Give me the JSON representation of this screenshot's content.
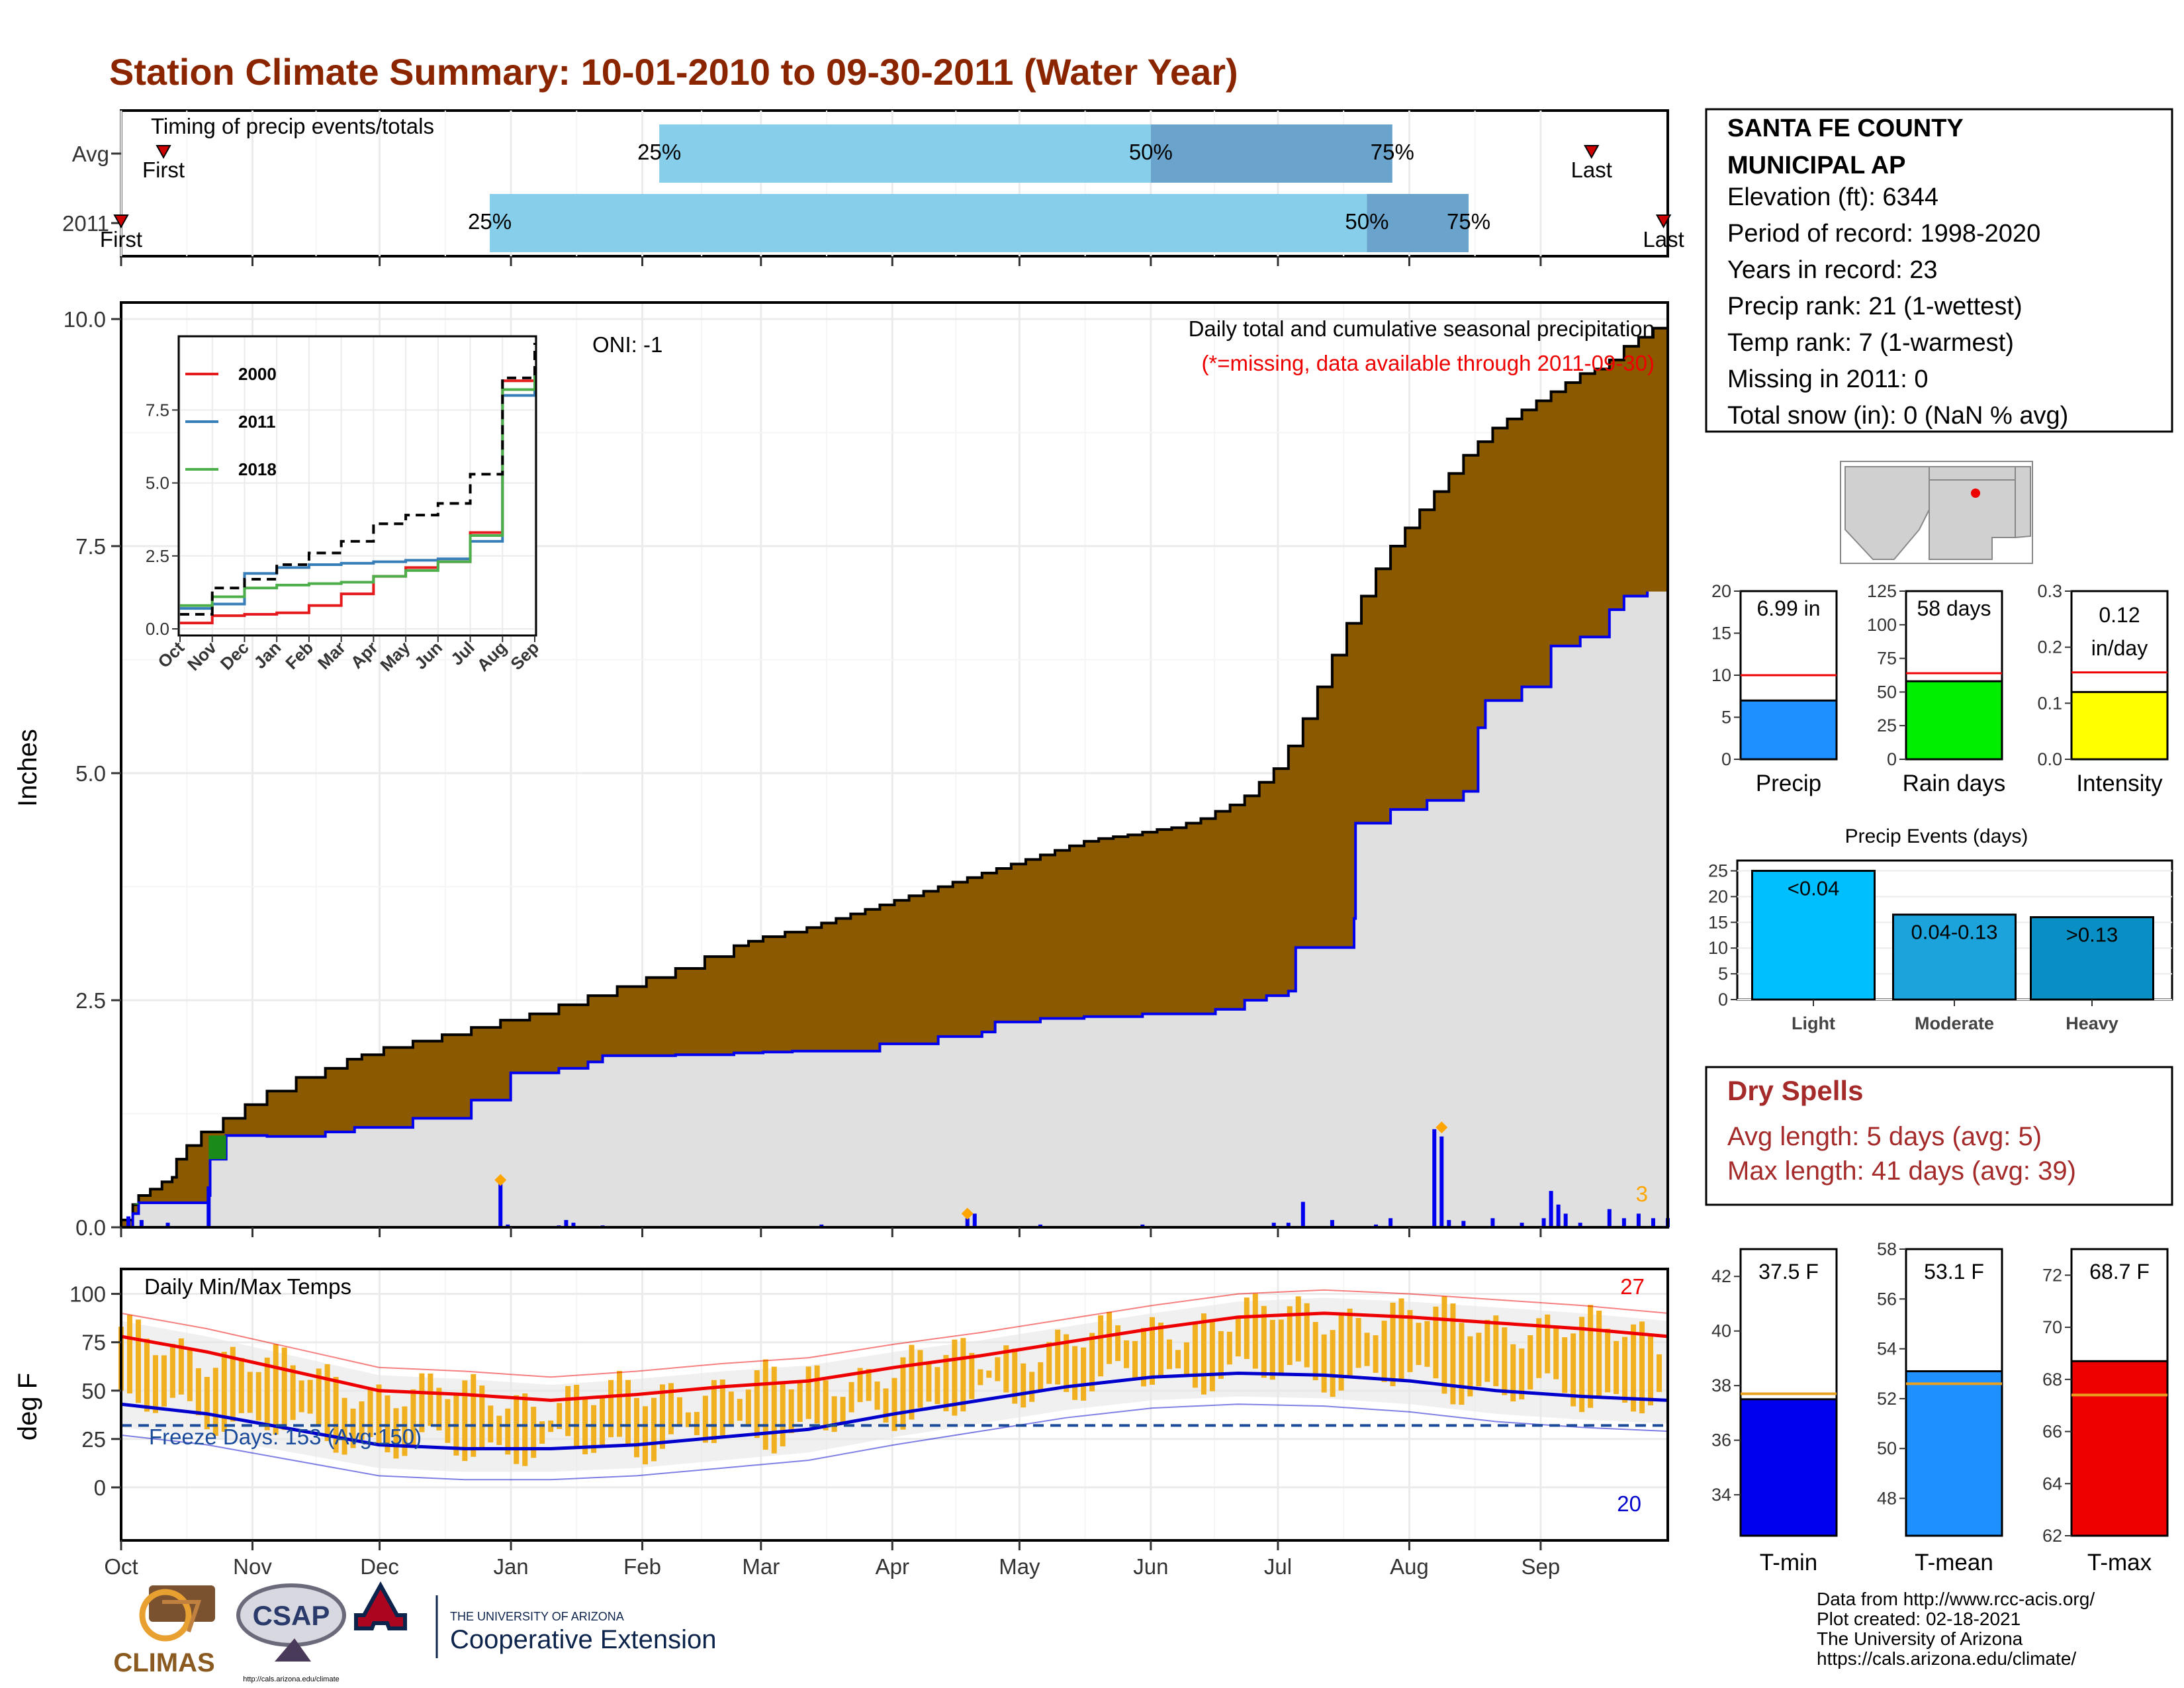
{
  "title": "Station Climate Summary: 10-01-2010 to 09-30-2011 (Water Year)",
  "timing_panel": {
    "label": "Timing of precip events/totals",
    "rows": [
      {
        "label": "Avg",
        "first_label": "First",
        "last_label": "Last",
        "p25_label": "25%",
        "p50_label": "50%",
        "p75_label": "75%",
        "first_day": 10,
        "p25_day": 127,
        "p50_day": 243,
        "p75_day": 300,
        "last_day": 347
      },
      {
        "label": "2011",
        "first_label": "First",
        "last_label": "Last",
        "p25_label": "25%",
        "p50_label": "50%",
        "p75_label": "75%",
        "first_day": 0,
        "p25_day": 87,
        "p50_day": 294,
        "p75_day": 318,
        "last_day": 364
      }
    ],
    "colors": {
      "light": "#87ceeb",
      "dark": "#6aa3cb",
      "marker": "#cc0000"
    }
  },
  "station_info": {
    "name_line1": "SANTA FE COUNTY",
    "name_line2": "MUNICIPAL AP",
    "lines": [
      "Elevation (ft): 6344",
      "Period of record: 1998-2020",
      "Years in record: 23",
      "Precip rank: 21 (1-wettest)",
      "Temp rank: 7 (1-warmest)",
      "Missing in 2011: 0",
      "Total snow (in): 0 (NaN % avg)"
    ]
  },
  "precip_panel": {
    "ylabel": "Inches",
    "oni_label": "ONI: -1",
    "subtitle": "Daily total and cumulative seasonal precipitation",
    "note": "(*=missing, data available through 2011-09-30)",
    "count_label": "3",
    "yticks": [
      "0.0",
      "2.5",
      "5.0",
      "7.5",
      "10.0"
    ],
    "ylim": [
      0,
      10
    ],
    "colors": {
      "avg_fill": "#8b5a00",
      "year_line": "#0000ee",
      "year_fill": "#e0e0e0",
      "daily_bar": "#0000ee",
      "marker": "#ffa500",
      "wetter_fill": "#1a8a1a"
    },
    "avg_cumulative": [
      [
        0,
        0.08
      ],
      [
        8,
        0.25
      ],
      [
        12,
        0.35
      ],
      [
        20,
        0.42
      ],
      [
        28,
        0.5
      ],
      [
        35,
        0.55
      ],
      [
        38,
        0.75
      ],
      [
        45,
        0.9
      ],
      [
        55,
        1.05
      ],
      [
        70,
        1.2
      ],
      [
        85,
        1.35
      ],
      [
        100,
        1.5
      ],
      [
        120,
        1.65
      ],
      [
        140,
        1.75
      ],
      [
        155,
        1.85
      ],
      [
        165,
        1.9
      ],
      [
        180,
        1.98
      ],
      [
        200,
        2.05
      ],
      [
        220,
        2.12
      ],
      [
        240,
        2.2
      ],
      [
        260,
        2.28
      ],
      [
        280,
        2.35
      ],
      [
        300,
        2.45
      ],
      [
        320,
        2.55
      ],
      [
        340,
        2.65
      ],
      [
        360,
        2.75
      ],
      [
        380,
        2.85
      ],
      [
        400,
        2.98
      ],
      [
        420,
        3.1
      ],
      [
        430,
        3.15
      ],
      [
        440,
        3.2
      ],
      [
        455,
        3.25
      ],
      [
        470,
        3.3
      ],
      [
        480,
        3.35
      ],
      [
        490,
        3.4
      ],
      [
        500,
        3.45
      ],
      [
        510,
        3.5
      ],
      [
        520,
        3.55
      ],
      [
        530,
        3.6
      ],
      [
        540,
        3.65
      ],
      [
        550,
        3.7
      ],
      [
        560,
        3.75
      ],
      [
        570,
        3.8
      ],
      [
        580,
        3.85
      ],
      [
        590,
        3.9
      ],
      [
        600,
        3.95
      ],
      [
        610,
        4.0
      ],
      [
        620,
        4.05
      ],
      [
        630,
        4.1
      ],
      [
        640,
        4.15
      ],
      [
        650,
        4.2
      ],
      [
        660,
        4.25
      ],
      [
        670,
        4.28
      ],
      [
        680,
        4.3
      ],
      [
        690,
        4.32
      ],
      [
        700,
        4.35
      ],
      [
        710,
        4.38
      ],
      [
        720,
        4.4
      ],
      [
        730,
        4.45
      ],
      [
        740,
        4.5
      ],
      [
        750,
        4.58
      ],
      [
        760,
        4.65
      ],
      [
        770,
        4.75
      ],
      [
        780,
        4.9
      ],
      [
        790,
        5.05
      ],
      [
        800,
        5.3
      ],
      [
        810,
        5.6
      ],
      [
        820,
        5.95
      ],
      [
        830,
        6.3
      ],
      [
        840,
        6.65
      ],
      [
        850,
        6.95
      ],
      [
        860,
        7.25
      ],
      [
        870,
        7.5
      ],
      [
        880,
        7.7
      ],
      [
        890,
        7.9
      ],
      [
        900,
        8.1
      ],
      [
        910,
        8.3
      ],
      [
        920,
        8.5
      ],
      [
        930,
        8.65
      ],
      [
        940,
        8.8
      ],
      [
        950,
        8.9
      ],
      [
        960,
        9.0
      ],
      [
        970,
        9.1
      ],
      [
        980,
        9.2
      ],
      [
        990,
        9.3
      ],
      [
        1000,
        9.4
      ],
      [
        1010,
        9.45
      ],
      [
        1020,
        9.55
      ],
      [
        1030,
        9.7
      ],
      [
        1040,
        9.8
      ],
      [
        1050,
        9.9
      ],
      [
        1060,
        10.0
      ]
    ],
    "year_cumulative": [
      [
        0,
        0.0
      ],
      [
        8,
        0.15
      ],
      [
        12,
        0.27
      ],
      [
        30,
        0.27
      ],
      [
        60,
        0.35
      ],
      [
        61,
        0.75
      ],
      [
        72,
        1.01
      ],
      [
        100,
        1.0
      ],
      [
        140,
        1.05
      ],
      [
        160,
        1.1
      ],
      [
        200,
        1.2
      ],
      [
        240,
        1.4
      ],
      [
        260,
        1.4
      ],
      [
        267,
        1.7
      ],
      [
        300,
        1.75
      ],
      [
        320,
        1.82
      ],
      [
        330,
        1.89
      ],
      [
        380,
        1.9
      ],
      [
        420,
        1.92
      ],
      [
        440,
        1.93
      ],
      [
        460,
        1.94
      ],
      [
        520,
        2.02
      ],
      [
        560,
        2.1
      ],
      [
        590,
        2.15
      ],
      [
        599,
        2.26
      ],
      [
        615,
        2.26
      ],
      [
        630,
        2.3
      ],
      [
        660,
        2.32
      ],
      [
        700,
        2.35
      ],
      [
        750,
        2.4
      ],
      [
        770,
        2.5
      ],
      [
        785,
        2.55
      ],
      [
        800,
        2.6
      ],
      [
        805,
        3.08
      ],
      [
        840,
        3.08
      ],
      [
        845,
        3.4
      ],
      [
        846,
        4.45
      ],
      [
        870,
        4.6
      ],
      [
        895,
        4.7
      ],
      [
        920,
        4.8
      ],
      [
        930,
        5.5
      ],
      [
        935,
        5.8
      ],
      [
        960,
        5.95
      ],
      [
        980,
        6.4
      ],
      [
        1000,
        6.5
      ],
      [
        1020,
        6.8
      ],
      [
        1030,
        6.95
      ],
      [
        1046,
        7.0
      ]
    ],
    "daily_bars": [
      [
        5,
        0.12
      ],
      [
        14,
        0.08
      ],
      [
        32,
        0.05
      ],
      [
        60,
        0.45
      ],
      [
        260,
        0.5
      ],
      [
        265,
        0.03
      ],
      [
        300,
        0.02
      ],
      [
        305,
        0.08
      ],
      [
        310,
        0.05
      ],
      [
        330,
        0.02
      ],
      [
        480,
        0.03
      ],
      [
        580,
        0.1
      ],
      [
        585,
        0.15
      ],
      [
        630,
        0.03
      ],
      [
        700,
        0.03
      ],
      [
        790,
        0.05
      ],
      [
        800,
        0.05
      ],
      [
        810,
        0.28
      ],
      [
        830,
        0.08
      ],
      [
        860,
        0.03
      ],
      [
        870,
        0.1
      ],
      [
        900,
        1.08
      ],
      [
        905,
        1.0
      ],
      [
        910,
        0.08
      ],
      [
        920,
        0.07
      ],
      [
        940,
        0.1
      ],
      [
        960,
        0.05
      ],
      [
        975,
        0.1
      ],
      [
        980,
        0.4
      ],
      [
        985,
        0.25
      ],
      [
        990,
        0.15
      ],
      [
        1000,
        0.05
      ],
      [
        1020,
        0.2
      ],
      [
        1030,
        0.1
      ],
      [
        1040,
        0.15
      ],
      [
        1050,
        0.1
      ],
      [
        1060,
        0.1
      ]
    ],
    "markers": [
      [
        260,
        0.52
      ],
      [
        580,
        0.15
      ],
      [
        905,
        1.1
      ]
    ]
  },
  "inset_chart": {
    "xlabels": [
      "Oct",
      "Nov",
      "Dec",
      "Jan",
      "Feb",
      "Mar",
      "Apr",
      "May",
      "Jun",
      "Jul",
      "Aug",
      "Sep"
    ],
    "yticks": [
      "0.0",
      "2.5",
      "5.0",
      "7.5"
    ],
    "ylim": [
      0,
      9.8
    ],
    "series": [
      {
        "name": "2000",
        "color": "#e41a1c",
        "values": [
          0.2,
          0.45,
          0.5,
          0.55,
          0.8,
          1.2,
          1.8,
          2.1,
          2.3,
          3.3,
          8.5,
          9.0
        ]
      },
      {
        "name": "2011",
        "color": "#377eb8",
        "values": [
          0.7,
          0.85,
          1.9,
          2.1,
          2.2,
          2.25,
          2.3,
          2.35,
          2.4,
          3.0,
          8.0,
          8.9
        ]
      },
      {
        "name": "2018",
        "color": "#4daf4a",
        "values": [
          0.8,
          1.1,
          1.4,
          1.5,
          1.55,
          1.6,
          1.8,
          2.0,
          2.3,
          3.2,
          8.2,
          8.95
        ]
      }
    ],
    "avg_values": [
      0.5,
      1.4,
      1.7,
      2.2,
      2.6,
      3.0,
      3.6,
      3.9,
      4.3,
      5.3,
      8.6,
      9.8
    ]
  },
  "temp_panel": {
    "ylabel": "deg F",
    "label": "Daily Min/Max Temps",
    "freeze_label": "Freeze Days: 153 (Avg:150)",
    "max_count": "27",
    "min_count": "20",
    "yticks": [
      "0",
      "25",
      "50",
      "75",
      "100"
    ],
    "ylim": [
      -20,
      100
    ],
    "xlabels": [
      "Oct",
      "Nov",
      "Dec",
      "Jan",
      "Feb",
      "Mar",
      "Apr",
      "May",
      "Jun",
      "Jul",
      "Aug",
      "Sep"
    ],
    "freeze_line": 32,
    "avg_max": [
      [
        0,
        78
      ],
      [
        30,
        70
      ],
      [
        60,
        60
      ],
      [
        90,
        50
      ],
      [
        120,
        48
      ],
      [
        150,
        45
      ],
      [
        180,
        48
      ],
      [
        210,
        52
      ],
      [
        240,
        55
      ],
      [
        270,
        62
      ],
      [
        300,
        68
      ],
      [
        330,
        75
      ],
      [
        360,
        82
      ],
      [
        390,
        88
      ],
      [
        420,
        90
      ],
      [
        450,
        88
      ],
      [
        480,
        85
      ],
      [
        510,
        82
      ],
      [
        540,
        78
      ]
    ],
    "avg_min": [
      [
        0,
        43
      ],
      [
        30,
        38
      ],
      [
        60,
        30
      ],
      [
        90,
        22
      ],
      [
        120,
        20
      ],
      [
        150,
        20
      ],
      [
        180,
        22
      ],
      [
        210,
        26
      ],
      [
        240,
        30
      ],
      [
        270,
        38
      ],
      [
        300,
        45
      ],
      [
        330,
        52
      ],
      [
        360,
        57
      ],
      [
        390,
        59
      ],
      [
        420,
        58
      ],
      [
        450,
        55
      ],
      [
        480,
        50
      ],
      [
        510,
        47
      ],
      [
        540,
        45
      ]
    ],
    "colors": {
      "bars": "#f0b020",
      "avg_max": "#ee0000",
      "avg_min": "#0000cc",
      "freeze": "#1a4a9a",
      "shade": "#e6e6e6"
    }
  },
  "gauges_top": [
    {
      "label": "Precip",
      "value_label": "6.99 in",
      "value": 6.99,
      "avg": 10.0,
      "ymax": 20,
      "ticks": [
        "0",
        "5",
        "10",
        "15",
        "20"
      ],
      "color": "#1e90ff"
    },
    {
      "label": "Rain days",
      "value_label": "58 days",
      "value": 58,
      "avg": 64,
      "ymax": 125,
      "ticks": [
        "0",
        "25",
        "50",
        "75",
        "100",
        "125"
      ],
      "color": "#00ee00"
    },
    {
      "label": "Intensity",
      "value_label": "0.12 in/day",
      "value": 0.12,
      "avg": 0.155,
      "ymax": 0.3,
      "ticks": [
        "0.0",
        "0.1",
        "0.2",
        "0.3"
      ],
      "color": "#ffff00"
    }
  ],
  "events_panel": {
    "title": "Precip Events (days)",
    "ticks": [
      "0",
      "5",
      "10",
      "15",
      "20",
      "25"
    ],
    "bars": [
      {
        "label": "Light",
        "value_label": "<0.04",
        "value": 25,
        "color": "#00bfff"
      },
      {
        "label": "Moderate",
        "value_label": "0.04-0.13",
        "value": 16.5,
        "color": "#1ca3db"
      },
      {
        "label": "Heavy",
        "value_label": ">0.13",
        "value": 16,
        "color": "#0a8fc4"
      }
    ]
  },
  "dry_spells": {
    "title": "Dry Spells",
    "avg_line": "Avg length: 5 days (avg: 5)",
    "max_line": "Max length: 41 days (avg: 39)",
    "color": "#a52a2a"
  },
  "gauges_temp": [
    {
      "label": "T-min",
      "value_label": "37.5 F",
      "value": 37.5,
      "avg": 37.7,
      "ymin": 32.5,
      "ymax": 43,
      "ticks": [
        "34",
        "36",
        "38",
        "40",
        "42"
      ],
      "tickvals": [
        34,
        36,
        38,
        40,
        42
      ],
      "color": "#0000ee"
    },
    {
      "label": "T-mean",
      "value_label": "53.1 F",
      "value": 53.1,
      "avg": 52.6,
      "ymin": 46.5,
      "ymax": 58,
      "ticks": [
        "48",
        "50",
        "52",
        "54",
        "56",
        "58"
      ],
      "tickvals": [
        48,
        50,
        52,
        54,
        56,
        58
      ],
      "color": "#1e90ff"
    },
    {
      "label": "T-max",
      "value_label": "68.7 F",
      "value": 68.7,
      "avg": 67.4,
      "ymin": 62,
      "ymax": 73,
      "ticks": [
        "62",
        "64",
        "66",
        "68",
        "70",
        "72"
      ],
      "tickvals": [
        62,
        64,
        66,
        68,
        70,
        72
      ],
      "color": "#ee0000"
    }
  ],
  "footer": {
    "lines": [
      "Data from http://www.rcc-acis.org/",
      "Plot created: 02-18-2021",
      "The University of Arizona",
      "https://cals.arizona.edu/climate/"
    ],
    "logo_climas": "CLIMAS",
    "logo_csap": "CSAP",
    "csap_url": "http://cals.arizona.edu/climate",
    "ua_small": "THE UNIVERSITY OF ARIZONA",
    "ua_big": "Cooperative Extension"
  }
}
